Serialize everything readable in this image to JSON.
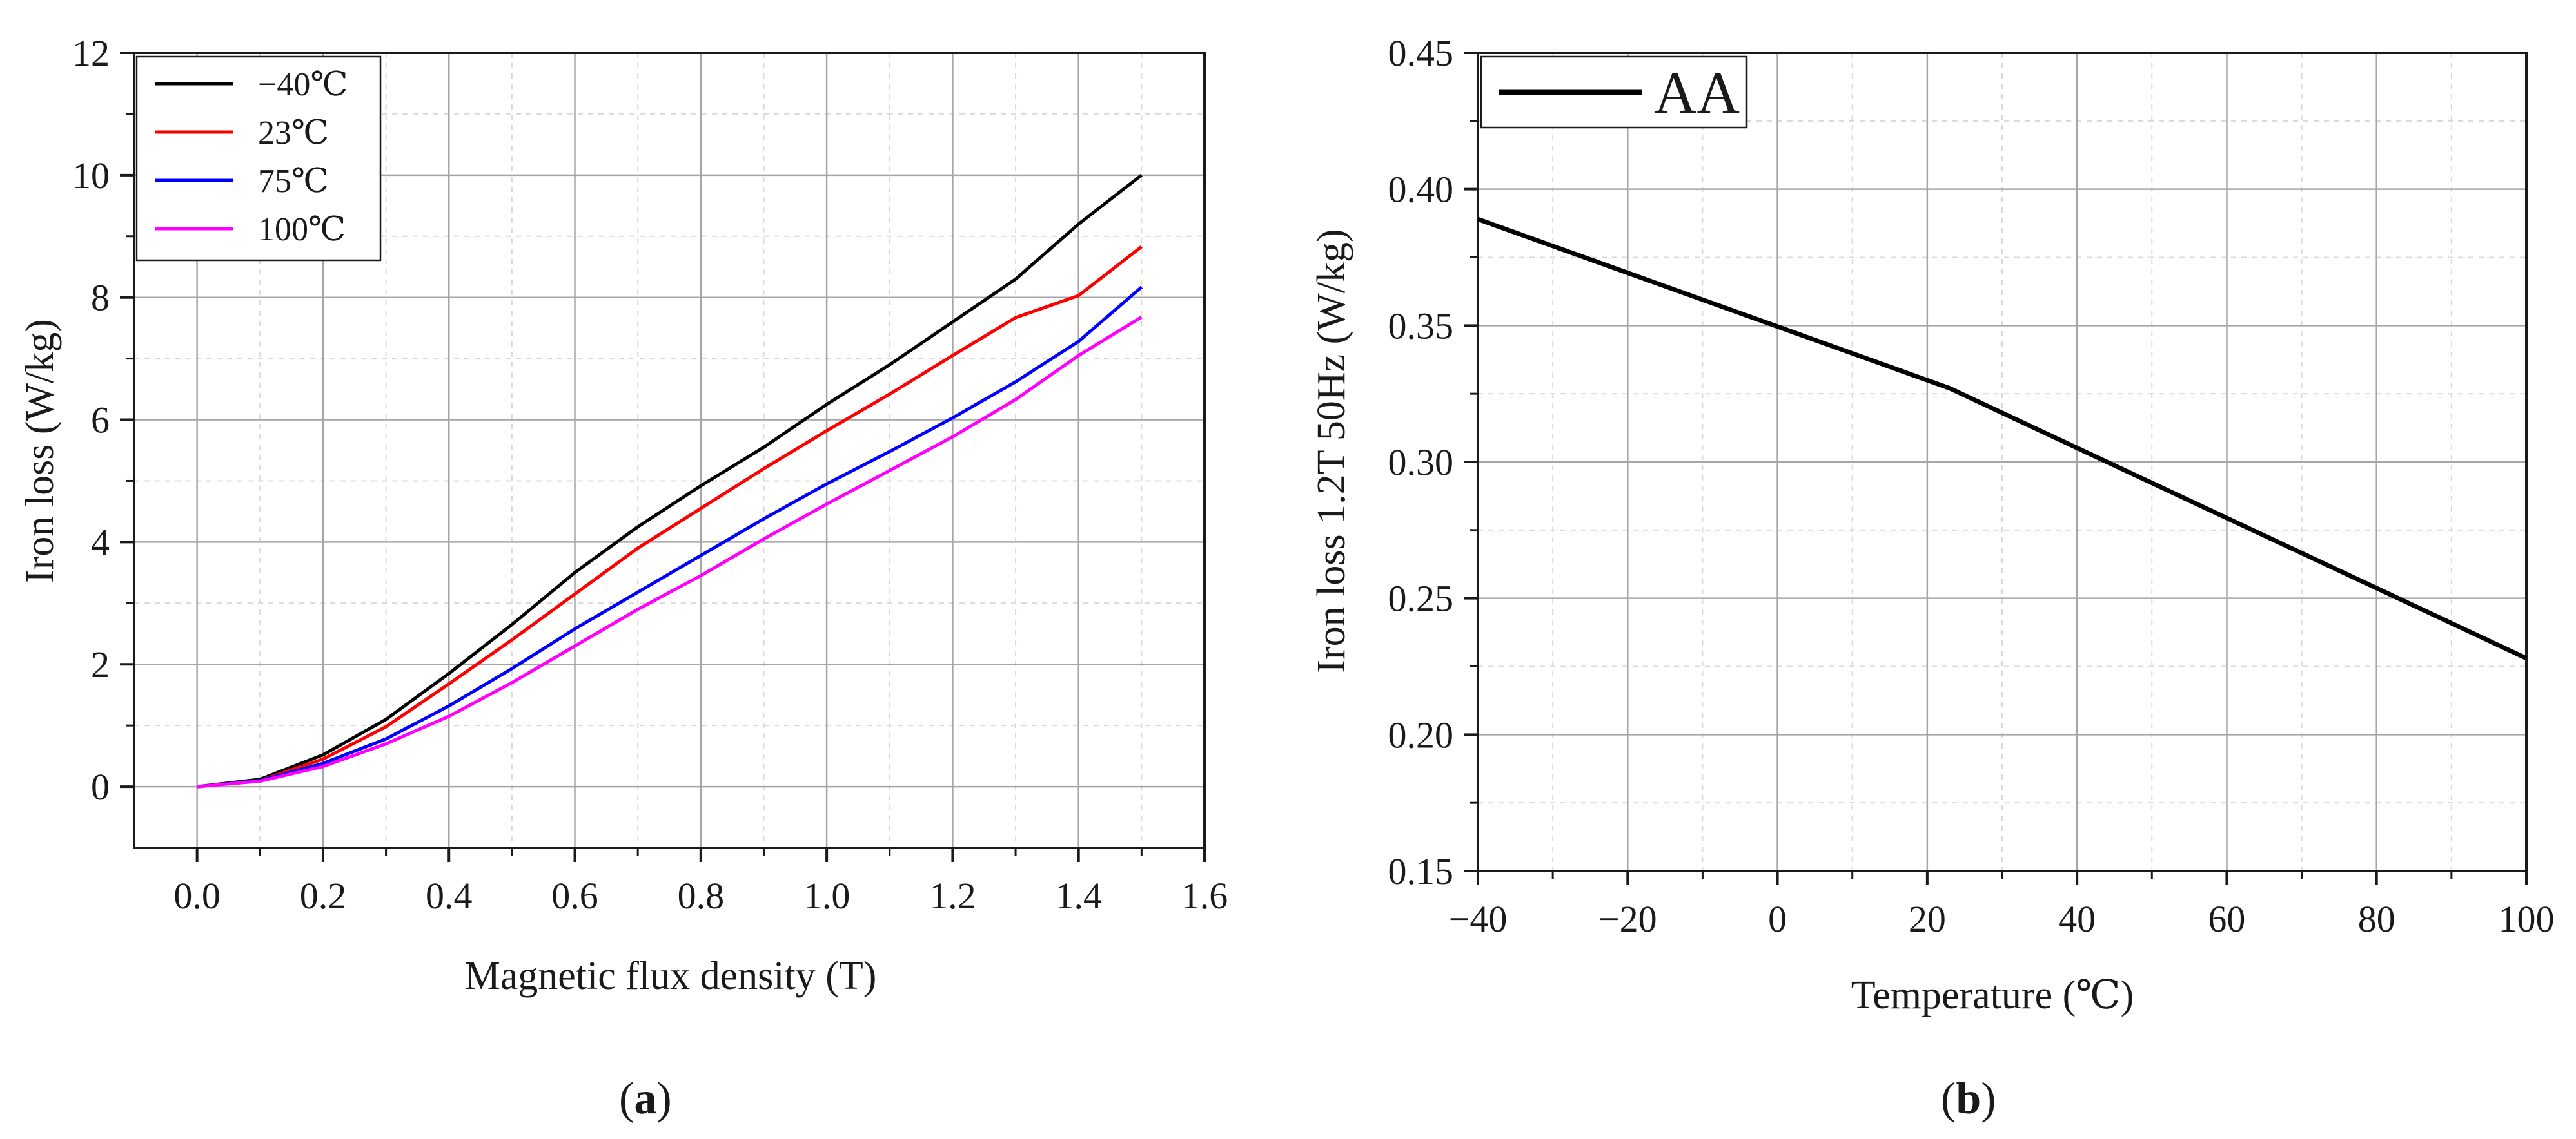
{
  "chart_data": [
    {
      "panel": "a",
      "type": "line",
      "xlabel": "Magnetic flux density (T)",
      "ylabel": "Iron loss (W/kg)",
      "xlim": [
        -0.1,
        1.6
      ],
      "ylim": [
        -1,
        12
      ],
      "xticks": [
        "0.0",
        "0.2",
        "0.4",
        "0.6",
        "0.8",
        "1.0",
        "1.2",
        "1.4",
        "1.6"
      ],
      "yticks": [
        "0",
        "2",
        "4",
        "6",
        "8",
        "10",
        "12"
      ],
      "grid": true,
      "legend_position": "top-left",
      "x": [
        0.0,
        0.1,
        0.2,
        0.3,
        0.4,
        0.5,
        0.6,
        0.7,
        0.8,
        0.9,
        1.0,
        1.1,
        1.2,
        1.3,
        1.4,
        1.5
      ],
      "series": [
        {
          "name": "−40℃",
          "color": "#000000",
          "values": [
            0.0,
            0.12,
            0.52,
            1.1,
            1.85,
            2.65,
            3.5,
            4.25,
            4.92,
            5.55,
            6.25,
            6.9,
            7.6,
            8.3,
            9.2,
            10.0
          ]
        },
        {
          "name": "23℃",
          "color": "#ff0000",
          "values": [
            0.0,
            0.1,
            0.45,
            0.98,
            1.68,
            2.4,
            3.15,
            3.9,
            4.55,
            5.2,
            5.82,
            6.42,
            7.05,
            7.67,
            8.03,
            8.83
          ]
        },
        {
          "name": "75℃",
          "color": "#0000ff",
          "values": [
            0.0,
            0.1,
            0.38,
            0.78,
            1.32,
            1.93,
            2.58,
            3.18,
            3.78,
            4.38,
            4.95,
            5.48,
            6.03,
            6.62,
            7.28,
            8.17
          ]
        },
        {
          "name": "100℃",
          "color": "#ff00ff",
          "values": [
            0.0,
            0.09,
            0.33,
            0.7,
            1.15,
            1.7,
            2.3,
            2.9,
            3.45,
            4.05,
            4.62,
            5.17,
            5.72,
            6.33,
            7.05,
            7.68
          ]
        }
      ],
      "label": "a"
    },
    {
      "panel": "b",
      "type": "line",
      "xlabel": "Temperature (℃)",
      "ylabel": "Iron loss 1.2T 50Hz (W/kg)",
      "xlim": [
        -40,
        100
      ],
      "ylim": [
        0.15,
        0.45
      ],
      "xticks": [
        "−40",
        "−20",
        "0",
        "20",
        "40",
        "60",
        "80",
        "100"
      ],
      "yticks": [
        "0.15",
        "0.20",
        "0.25",
        "0.30",
        "0.35",
        "0.40",
        "0.45"
      ],
      "grid": true,
      "legend_position": "top-left",
      "x": [
        -40,
        23,
        100
      ],
      "series": [
        {
          "name": "AA",
          "color": "#000000",
          "values": [
            0.389,
            0.327,
            0.228
          ]
        }
      ],
      "label": "b"
    }
  ]
}
